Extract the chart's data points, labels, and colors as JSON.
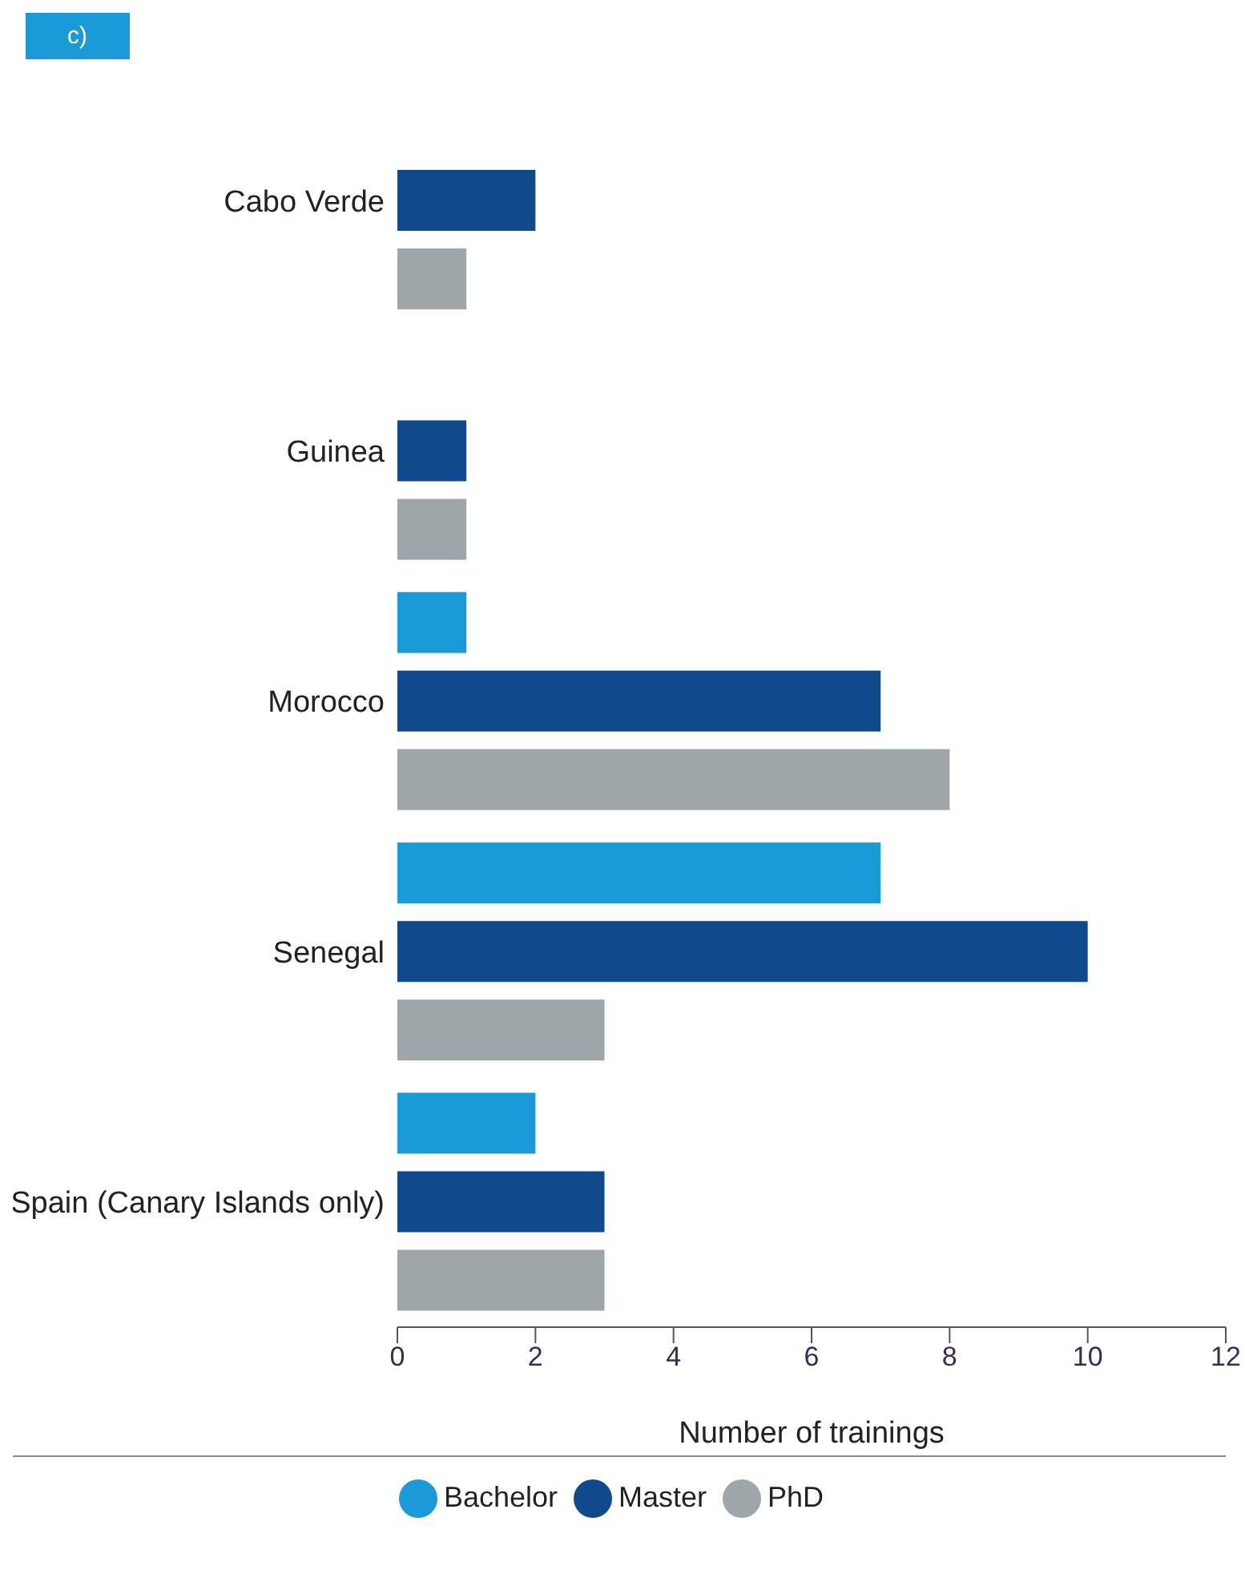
{
  "chart_data": {
    "type": "bar",
    "orientation": "horizontal",
    "title": "c)",
    "xlabel": "Number of trainings",
    "categories": [
      "Cabo Verde",
      "Guinea",
      "Morocco",
      "Senegal",
      "Spain (Canary Islands only)"
    ],
    "series": [
      {
        "name": "Bachelor",
        "color": "#1a9ad6",
        "values": [
          null,
          null,
          1,
          7,
          2
        ]
      },
      {
        "name": "Master",
        "color": "#114a8c",
        "values": [
          2,
          1,
          7,
          10,
          3
        ]
      },
      {
        "name": "PhD",
        "color": "#9ea6aa",
        "values": [
          1,
          1,
          8,
          3,
          3
        ]
      }
    ],
    "xlim": [
      0,
      12
    ],
    "xticks": [
      0,
      2,
      4,
      6,
      8,
      10,
      12
    ],
    "legend": "bottom"
  }
}
